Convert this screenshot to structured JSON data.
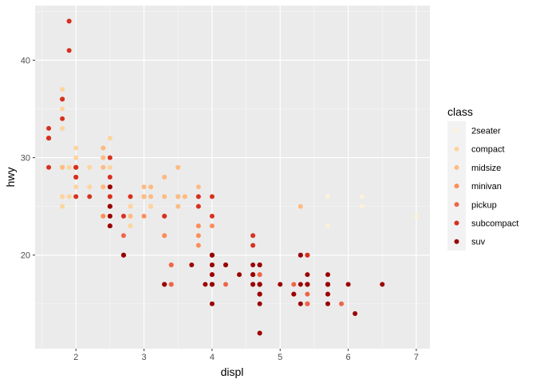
{
  "chart_data": {
    "type": "scatter",
    "title": "",
    "xlabel": "displ",
    "ylabel": "hwy",
    "xlim": [
      1.4,
      7.2
    ],
    "ylim": [
      10.4,
      45.6
    ],
    "x_ticks": [
      2,
      3,
      4,
      5,
      6,
      7
    ],
    "y_ticks": [
      20,
      30,
      40
    ],
    "grid": true,
    "legend_title": "class",
    "legend_position": "right",
    "series": [
      {
        "name": "2seater",
        "color": "#FEF0D9",
        "points": [
          [
            5.7,
            26
          ],
          [
            5.7,
            23
          ],
          [
            6.2,
            26
          ],
          [
            6.2,
            25
          ],
          [
            7.0,
            24
          ]
        ]
      },
      {
        "name": "compact",
        "color": "#FDD49E",
        "points": [
          [
            1.8,
            29
          ],
          [
            1.8,
            29
          ],
          [
            2.0,
            31
          ],
          [
            2.0,
            30
          ],
          [
            2.8,
            26
          ],
          [
            2.8,
            26
          ],
          [
            3.1,
            27
          ],
          [
            1.8,
            26
          ],
          [
            1.8,
            25
          ],
          [
            2.0,
            28
          ],
          [
            2.0,
            27
          ],
          [
            2.8,
            25
          ],
          [
            2.8,
            25
          ],
          [
            3.1,
            25
          ],
          [
            3.1,
            25
          ],
          [
            2.2,
            27
          ],
          [
            2.2,
            29
          ],
          [
            2.4,
            31
          ],
          [
            2.4,
            31
          ],
          [
            3.0,
            26
          ],
          [
            3.0,
            26
          ],
          [
            3.3,
            26
          ],
          [
            1.8,
            29
          ],
          [
            1.8,
            29
          ],
          [
            2.0,
            28
          ],
          [
            2.0,
            29
          ],
          [
            2.8,
            26
          ],
          [
            1.8,
            35
          ],
          [
            1.8,
            37
          ],
          [
            1.8,
            33
          ],
          [
            2.0,
            29
          ],
          [
            2.5,
            32
          ],
          [
            2.5,
            32
          ],
          [
            2.4,
            27
          ],
          [
            2.4,
            30
          ],
          [
            3.0,
            26
          ],
          [
            1.9,
            29
          ],
          [
            1.9,
            26
          ],
          [
            2.0,
            29
          ],
          [
            2.0,
            28
          ],
          [
            2.5,
            29
          ],
          [
            1.8,
            26
          ],
          [
            2.0,
            26
          ],
          [
            2.8,
            23
          ]
        ]
      },
      {
        "name": "midsize",
        "color": "#FDBB84",
        "points": [
          [
            2.4,
            27
          ],
          [
            2.4,
            30
          ],
          [
            3.1,
            26
          ],
          [
            3.5,
            29
          ],
          [
            3.6,
            26
          ],
          [
            2.4,
            29
          ],
          [
            3.0,
            26
          ],
          [
            3.3,
            26
          ],
          [
            3.3,
            28
          ],
          [
            3.3,
            28
          ],
          [
            3.5,
            26
          ],
          [
            3.8,
            25
          ],
          [
            3.8,
            27
          ],
          [
            2.5,
            27
          ],
          [
            2.5,
            25
          ],
          [
            2.5,
            26
          ],
          [
            3.0,
            26
          ],
          [
            3.0,
            27
          ],
          [
            3.5,
            25
          ],
          [
            2.4,
            24
          ],
          [
            2.4,
            27
          ],
          [
            2.7,
            24
          ],
          [
            2.7,
            24
          ],
          [
            3.8,
            26
          ],
          [
            3.8,
            26
          ],
          [
            3.1,
            27
          ],
          [
            3.5,
            26
          ],
          [
            3.5,
            29
          ],
          [
            2.5,
            26
          ],
          [
            2.5,
            26
          ],
          [
            2.8,
            24
          ],
          [
            2.8,
            24
          ],
          [
            3.6,
            26
          ],
          [
            5.3,
            25
          ],
          [
            1.8,
            29
          ],
          [
            2.0,
            28
          ],
          [
            2.8,
            24
          ],
          [
            2.4,
            31
          ]
        ]
      },
      {
        "name": "minivan",
        "color": "#FC8D59",
        "points": [
          [
            2.4,
            24
          ],
          [
            3.0,
            24
          ],
          [
            3.3,
            22
          ],
          [
            3.3,
            22
          ],
          [
            3.3,
            24
          ],
          [
            3.3,
            24
          ],
          [
            3.3,
            17
          ],
          [
            3.8,
            22
          ],
          [
            3.8,
            21
          ],
          [
            3.8,
            23
          ],
          [
            4.0,
            23
          ],
          [
            3.4,
            19
          ]
        ]
      },
      {
        "name": "pickup",
        "color": "#EF6548",
        "points": [
          [
            4.7,
            16
          ],
          [
            4.7,
            17
          ],
          [
            5.2,
            17
          ],
          [
            5.7,
            17
          ],
          [
            5.9,
            15
          ],
          [
            4.7,
            17
          ],
          [
            4.7,
            12
          ],
          [
            5.2,
            16
          ],
          [
            4.2,
            17
          ],
          [
            4.6,
            17
          ],
          [
            5.4,
            15
          ],
          [
            5.4,
            15
          ],
          [
            5.4,
            17
          ],
          [
            3.4,
            17
          ],
          [
            3.4,
            17
          ],
          [
            4.0,
            20
          ],
          [
            4.0,
            19
          ],
          [
            4.7,
            17
          ],
          [
            4.7,
            18
          ],
          [
            5.7,
            16
          ],
          [
            2.7,
            20
          ],
          [
            2.7,
            22
          ],
          [
            2.7,
            20
          ],
          [
            3.4,
            19
          ],
          [
            4.0,
            18
          ],
          [
            4.7,
            18
          ],
          [
            4.0,
            20
          ],
          [
            4.6,
            18
          ],
          [
            5.4,
            16
          ],
          [
            4.0,
            18
          ],
          [
            4.0,
            19
          ],
          [
            5.2,
            16
          ],
          [
            5.4,
            15
          ]
        ]
      },
      {
        "name": "subcompact",
        "color": "#D7301F",
        "points": [
          [
            3.8,
            26
          ],
          [
            3.8,
            25
          ],
          [
            4.0,
            26
          ],
          [
            4.0,
            24
          ],
          [
            4.6,
            21
          ],
          [
            4.6,
            22
          ],
          [
            5.4,
            20
          ],
          [
            5.4,
            20
          ],
          [
            1.6,
            33
          ],
          [
            1.6,
            32
          ],
          [
            1.6,
            32
          ],
          [
            1.6,
            29
          ],
          [
            1.6,
            32
          ],
          [
            1.8,
            34
          ],
          [
            1.8,
            36
          ],
          [
            1.8,
            36
          ],
          [
            2.0,
            29
          ],
          [
            2.5,
            26
          ],
          [
            2.5,
            27
          ],
          [
            2.5,
            30
          ],
          [
            2.5,
            28
          ],
          [
            2.5,
            25
          ],
          [
            2.2,
            26
          ],
          [
            2.0,
            29
          ],
          [
            2.0,
            28
          ],
          [
            2.0,
            29
          ],
          [
            1.9,
            44
          ],
          [
            1.9,
            41
          ],
          [
            1.9,
            44
          ],
          [
            2.7,
            24
          ],
          [
            3.3,
            24
          ],
          [
            2.0,
            26
          ],
          [
            2.5,
            24
          ],
          [
            2.0,
            28
          ],
          [
            2.8,
            26
          ]
        ]
      },
      {
        "name": "suv",
        "color": "#990000",
        "points": [
          [
            5.3,
            20
          ],
          [
            5.3,
            15
          ],
          [
            5.3,
            20
          ],
          [
            5.7,
            17
          ],
          [
            6.0,
            17
          ],
          [
            5.7,
            17
          ],
          [
            6.5,
            17
          ],
          [
            4.0,
            17
          ],
          [
            4.7,
            16
          ],
          [
            4.7,
            17
          ],
          [
            4.7,
            12
          ],
          [
            5.7,
            16
          ],
          [
            6.1,
            14
          ],
          [
            5.3,
            17
          ],
          [
            5.4,
            17
          ],
          [
            4.2,
            19
          ],
          [
            4.4,
            18
          ],
          [
            4.6,
            19
          ],
          [
            4.6,
            17
          ],
          [
            5.4,
            17
          ],
          [
            5.4,
            17
          ],
          [
            4.0,
            17
          ],
          [
            4.0,
            19
          ],
          [
            4.7,
            19
          ],
          [
            3.7,
            19
          ],
          [
            4.7,
            19
          ],
          [
            4.6,
            18
          ],
          [
            4.6,
            18
          ],
          [
            4.6,
            18
          ],
          [
            5.7,
            18
          ],
          [
            5.7,
            17
          ],
          [
            4.0,
            17
          ],
          [
            5.4,
            18
          ],
          [
            4.0,
            20
          ],
          [
            4.6,
            17
          ],
          [
            5.0,
            17
          ],
          [
            2.5,
            25
          ],
          [
            2.5,
            24
          ],
          [
            2.5,
            25
          ],
          [
            2.5,
            23
          ],
          [
            2.5,
            23
          ],
          [
            2.5,
            27
          ],
          [
            4.7,
            15
          ],
          [
            4.7,
            16
          ],
          [
            5.7,
            15
          ],
          [
            4.7,
            17
          ],
          [
            4.0,
            15
          ],
          [
            4.0,
            18
          ],
          [
            4.2,
            19
          ],
          [
            4.0,
            20
          ],
          [
            3.9,
            17
          ],
          [
            3.3,
            17
          ],
          [
            3.3,
            17
          ],
          [
            2.7,
            20
          ],
          [
            2.7,
            20
          ],
          [
            4.7,
            16
          ],
          [
            4.7,
            17
          ],
          [
            4.7,
            17
          ],
          [
            5.7,
            17
          ],
          [
            4.0,
            20
          ],
          [
            4.7,
            19
          ],
          [
            5.2,
            16
          ]
        ]
      }
    ]
  }
}
